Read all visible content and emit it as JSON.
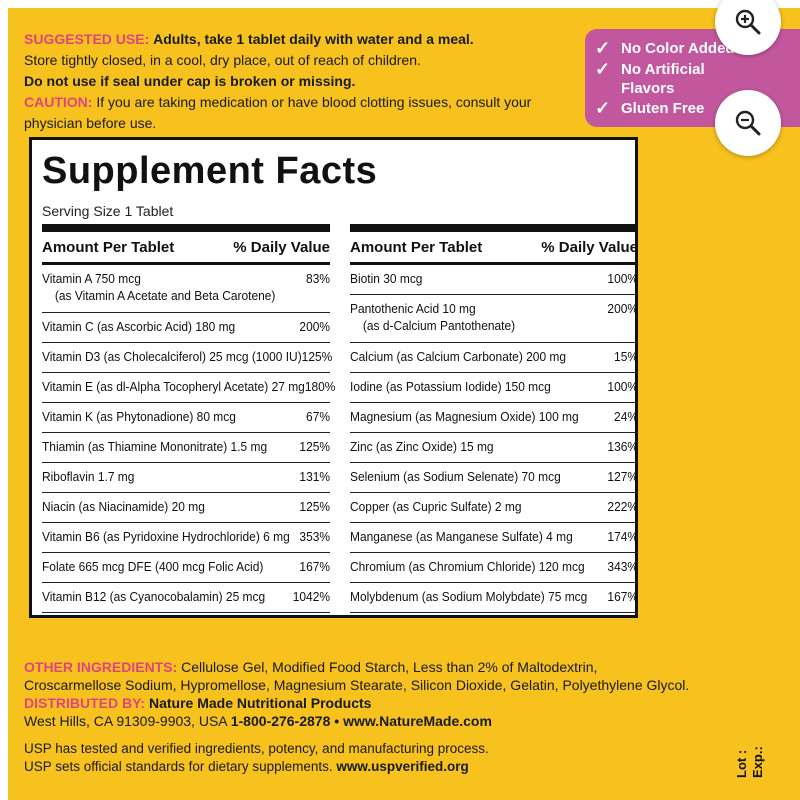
{
  "usage": {
    "suggested_label": "SUGGESTED USE:",
    "suggested_text": "Adults, take 1 tablet daily with water and a meal.",
    "storage": "Store tightly closed, in a cool, dry place, out of reach of children.",
    "seal": "Do not use if seal under cap is broken or missing.",
    "caution_label": "CAUTION:",
    "caution_text_1": "If you are taking medication or have blood clotting issues, consult your",
    "caution_text_2": "physician before use."
  },
  "badge": {
    "items": [
      "No Color Added",
      "No Artificial",
      "Flavors",
      "Gluten Free"
    ],
    "check": "✓",
    "color": "#c3579e"
  },
  "zoom": {
    "in_icon": "zoom-in-icon",
    "out_icon": "zoom-out-icon"
  },
  "facts": {
    "title": "Supplement Facts",
    "serving": "Serving Size 1 Tablet",
    "head_amount": "Amount Per Tablet",
    "head_dv": "% Daily Value",
    "left": [
      {
        "name": "Vitamin A  750 mcg",
        "sub": "(as Vitamin A Acetate and Beta Carotene)",
        "dv": "83%"
      },
      {
        "name": "Vitamin C (as Ascorbic Acid)  180 mg",
        "sub": "",
        "dv": "200%"
      },
      {
        "name": "Vitamin D3 (as Cholecalciferol)  25 mcg (1000 IU)",
        "sub": "",
        "dv": "125%"
      },
      {
        "name": "Vitamin E (as dl-Alpha Tocopheryl Acetate)  27 mg",
        "sub": "",
        "dv": "180%"
      },
      {
        "name": "Vitamin K (as Phytonadione)  80 mcg",
        "sub": "",
        "dv": "67%"
      },
      {
        "name": "Thiamin (as Thiamine Mononitrate)  1.5 mg",
        "sub": "",
        "dv": "125%"
      },
      {
        "name": "Riboflavin  1.7 mg",
        "sub": "",
        "dv": "131%"
      },
      {
        "name": "Niacin (as Niacinamide)  20 mg",
        "sub": "",
        "dv": "125%"
      },
      {
        "name": "Vitamin B6 (as Pyridoxine Hydrochloride)  6 mg",
        "sub": "",
        "dv": "353%"
      },
      {
        "name": "Folate  665 mcg DFE (400 mcg Folic Acid)",
        "sub": "",
        "dv": "167%"
      },
      {
        "name": "Vitamin B12 (as Cyanocobalamin)  25 mcg",
        "sub": "",
        "dv": "1042%"
      }
    ],
    "right": [
      {
        "name": "Biotin  30 mcg",
        "sub": "",
        "dv": "100%"
      },
      {
        "name": "Pantothenic Acid  10 mg",
        "sub": "(as d-Calcium Pantothenate)",
        "dv": "200%"
      },
      {
        "name": "Calcium (as Calcium Carbonate)  200 mg",
        "sub": "",
        "dv": "15%"
      },
      {
        "name": "Iodine (as Potassium Iodide)  150 mcg",
        "sub": "",
        "dv": "100%"
      },
      {
        "name": "Magnesium (as Magnesium Oxide)  100 mg",
        "sub": "",
        "dv": "24%"
      },
      {
        "name": "Zinc (as Zinc Oxide)  15 mg",
        "sub": "",
        "dv": "136%"
      },
      {
        "name": "Selenium (as Sodium Selenate)  70 mcg",
        "sub": "",
        "dv": "127%"
      },
      {
        "name": "Copper (as Cupric Sulfate)  2 mg",
        "sub": "",
        "dv": "222%"
      },
      {
        "name": "Manganese (as Manganese Sulfate)  4 mg",
        "sub": "",
        "dv": "174%"
      },
      {
        "name": "Chromium (as Chromium Chloride)  120 mcg",
        "sub": "",
        "dv": "343%"
      },
      {
        "name": "Molybdenum (as Sodium Molybdate)  75 mcg",
        "sub": "",
        "dv": "167%"
      }
    ]
  },
  "other": {
    "label": "OTHER INGREDIENTS:",
    "text_1": "Cellulose Gel, Modified Food Starch, Less than 2% of Maltodextrin,",
    "text_2": "Croscarmellose Sodium, Hypromellose, Magnesium Stearate, Silicon Dioxide, Gelatin, Polyethylene Glycol.",
    "dist_label": "DISTRIBUTED BY:",
    "dist_name": "Nature Made Nutritional Products",
    "address": "West Hills, CA 91309-9903, USA",
    "phone": "1-800-276-2878",
    "bullet": "•",
    "site": "www.NatureMade.com"
  },
  "usp": {
    "line_1": "USP has tested and verified ingredients, potency, and manufacturing process.",
    "line_2": "USP sets official standards for dietary supplements.",
    "url": "www.uspverified.org"
  },
  "lot": {
    "lot_label": "Lot :",
    "exp_label": "Exp.:"
  },
  "colors": {
    "background": "#f7c21e",
    "accent_pink": "#e0447e",
    "badge": "#c3579e"
  }
}
